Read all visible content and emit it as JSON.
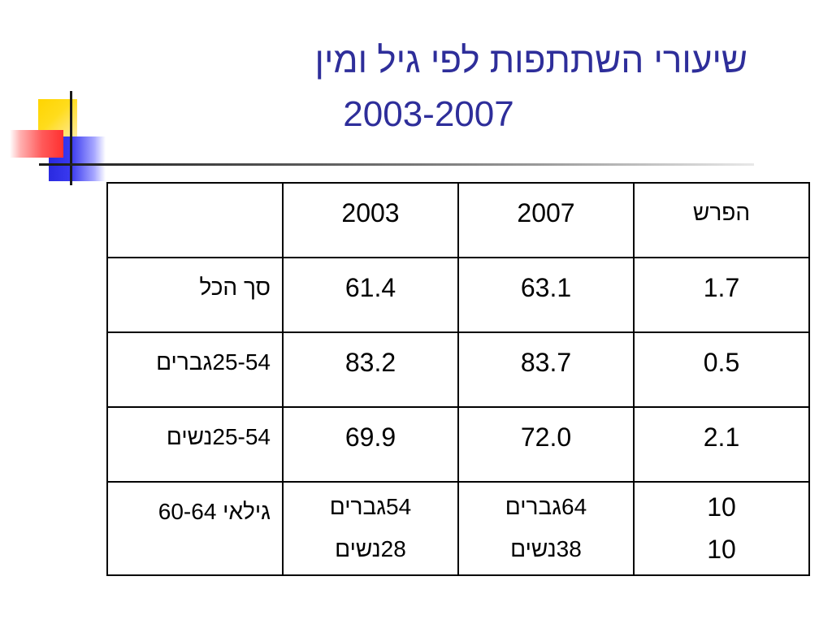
{
  "title": {
    "line1": "שיעורי השתתפות לפי גיל ומין",
    "line2": "2003-2007"
  },
  "table": {
    "header": {
      "label": "",
      "y2003": "2003",
      "y2007": "2007",
      "diff": "הפרש"
    },
    "rows": [
      {
        "label": "סך הכל",
        "y2003": "61.4",
        "y2007": "63.1",
        "diff": "1.7"
      },
      {
        "label": "25-54גברים",
        "y2003": "83.2",
        "y2007": "83.7",
        "diff": "0.5"
      },
      {
        "label": "25-54נשים",
        "y2003": "69.9",
        "y2007": "72.0",
        "diff": "2.1"
      }
    ],
    "age_row": {
      "label": "גילאי 60-64",
      "y2003_men": "54גברים",
      "y2003_women": "28נשים",
      "y2007_men": "64גברים",
      "y2007_women": "38נשים",
      "diff_men": "10",
      "diff_women": "10"
    }
  },
  "colors": {
    "title": "#2e2e9a",
    "accent_yellow": "#ffd400",
    "accent_red": "#ff3030",
    "accent_blue": "#2a2ae0"
  }
}
